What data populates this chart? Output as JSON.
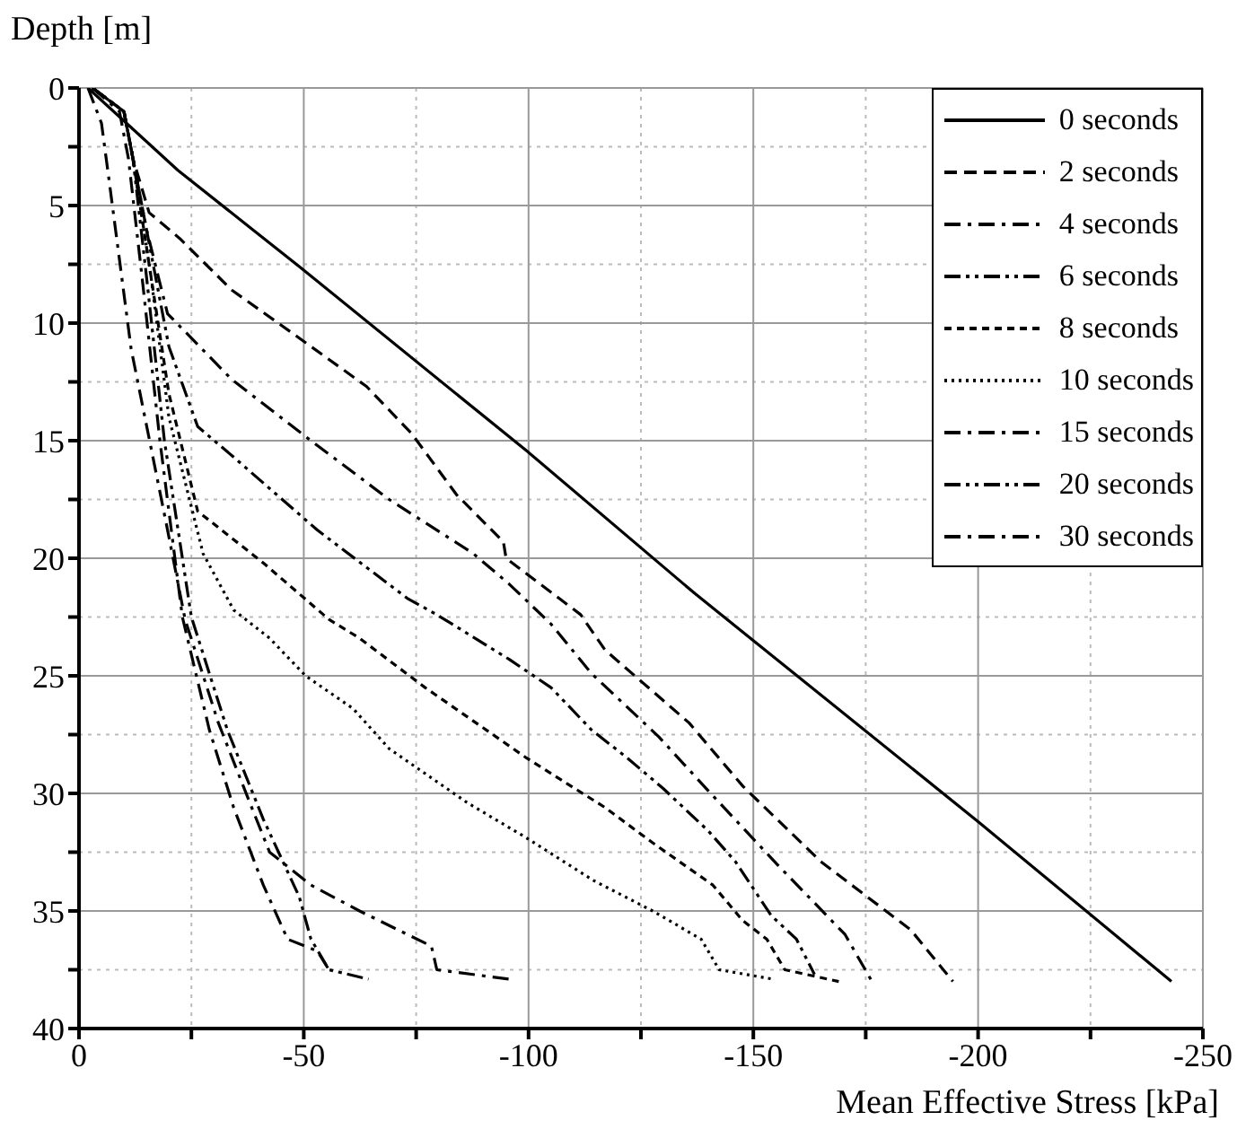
{
  "chart_data": {
    "type": "line",
    "xlabel": "Mean Effective Stress [kPa]",
    "ylabel": "Depth [m]",
    "xlim": [
      0,
      -250
    ],
    "ylim": [
      40,
      0
    ],
    "xticks": [
      0,
      {
        "value": -25,
        "label": null
      },
      -50,
      {
        "value": -75,
        "label": null
      },
      -100,
      {
        "value": -125,
        "label": null
      },
      -150,
      {
        "value": -175,
        "label": null
      },
      -200,
      {
        "value": -225,
        "label": null
      },
      -250
    ],
    "yticks": [
      0,
      {
        "value": 2.5,
        "label": null
      },
      5,
      {
        "value": 7.5,
        "label": null
      },
      10,
      {
        "value": 12.5,
        "label": null
      },
      15,
      {
        "value": 17.5,
        "label": null
      },
      20,
      {
        "value": 22.5,
        "label": null
      },
      25,
      {
        "value": 27.5,
        "label": null
      },
      30,
      {
        "value": 32.5,
        "label": null
      },
      35,
      {
        "value": 37.5,
        "label": null
      },
      40
    ],
    "grid": true,
    "legend": "top right",
    "marker": "none",
    "series": [
      {
        "name": "0 seconds",
        "color": "#000000",
        "line_style": "solid",
        "x": [
          -2,
          -22,
          -49,
          -100,
          -137,
          -150,
          -200,
          -243
        ],
        "values": [
          0,
          3.5,
          7.6,
          15.5,
          21.5,
          23.5,
          31.2,
          38
        ]
      },
      {
        "name": "2 seconds",
        "color": "#000000",
        "line_style": "dashed",
        "x": [
          -3,
          -10,
          -12,
          -15.6,
          -22.4,
          -34,
          -48,
          -64,
          -74,
          -84,
          -94.4,
          -95,
          -111.6,
          -117,
          -135.7,
          -147.7,
          -165,
          -185,
          -194.4
        ],
        "values": [
          0,
          1,
          3,
          5.3,
          6.4,
          8.6,
          10.5,
          12.7,
          14.7,
          17.3,
          19.3,
          20,
          22.4,
          23.9,
          27,
          29.7,
          32.9,
          35.8,
          38
        ]
      },
      {
        "name": "4 seconds",
        "color": "#000000",
        "line_style": "dashdot",
        "x": [
          -3,
          -10,
          -12,
          -15,
          -19.7,
          -34,
          -51.6,
          -69,
          -87.7,
          -95.7,
          -105,
          -114,
          -129,
          -141,
          -155.7,
          -170.4,
          -176.4
        ],
        "values": [
          0,
          1,
          3,
          6,
          9.6,
          12.4,
          15,
          17.5,
          19.8,
          21.1,
          22.8,
          24.9,
          27.6,
          30.1,
          33.1,
          36,
          38
        ]
      },
      {
        "name": "6 seconds",
        "color": "#000000",
        "line_style": "dashdotdot",
        "x": [
          -3,
          -10,
          -12,
          -16,
          -20,
          -26.4,
          -34.4,
          -53,
          -73,
          -79.6,
          -95.7,
          -105,
          -114,
          -122,
          -130,
          -140,
          -146,
          -154,
          -159.6,
          -163.6
        ],
        "values": [
          0,
          1,
          3,
          7,
          11,
          14.4,
          15.7,
          18.8,
          21.7,
          22.4,
          24.3,
          25.5,
          27.3,
          28.5,
          29.8,
          31.6,
          32.9,
          35.2,
          36.2,
          37.7
        ]
      },
      {
        "name": "8 seconds",
        "color": "#000000",
        "line_style": "shortdash",
        "x": [
          -3,
          -10,
          -12,
          -16,
          -20,
          -26.4,
          -41,
          -55.6,
          -62.4,
          -77,
          -99.6,
          -117,
          -127.6,
          -141,
          -147.6,
          -153,
          -157,
          -169
        ],
        "values": [
          0,
          1,
          3,
          8,
          13,
          18,
          20.2,
          22.6,
          23.4,
          25.5,
          28.5,
          30.6,
          32.1,
          33.9,
          35.4,
          36.2,
          37.5,
          38
        ]
      },
      {
        "name": "10 seconds",
        "color": "#000000",
        "line_style": "dotted",
        "x": [
          -3,
          -10,
          -12,
          -16,
          -20,
          -27.6,
          -34.4,
          -42.4,
          -50.4,
          -61,
          -69,
          -86.4,
          -99.6,
          -114.4,
          -127.6,
          -138.4,
          -142.4,
          -154.4
        ],
        "values": [
          0,
          1,
          3,
          8,
          14,
          19.8,
          22.2,
          23.4,
          25,
          26.4,
          28.1,
          30.4,
          31.9,
          33.7,
          35,
          36.2,
          37.5,
          37.9
        ]
      },
      {
        "name": "15 seconds",
        "color": "#000000",
        "line_style": "dashdot",
        "x": [
          -2,
          -5,
          -6.4,
          -11.6,
          -19.7,
          -23.6,
          -31,
          -38,
          -42.4,
          -51.6,
          -62.4,
          -78.4,
          -79.6,
          -95.7
        ],
        "values": [
          0,
          1.5,
          3.5,
          11.1,
          18.8,
          22.6,
          27,
          30.4,
          32.5,
          33.9,
          35,
          36.5,
          37.5,
          37.9
        ]
      },
      {
        "name": "20 seconds",
        "color": "#000000",
        "line_style": "dashdotdot",
        "x": [
          -3,
          -10,
          -12,
          -15,
          -19,
          -25,
          -33,
          -41,
          -49,
          -51.6,
          -55.6,
          -64.4
        ],
        "values": [
          0,
          1,
          3,
          8,
          15,
          22.5,
          27.3,
          31.1,
          34.4,
          36.2,
          37.5,
          37.9
        ]
      },
      {
        "name": "30 seconds",
        "color": "#000000",
        "line_style": "dashdot",
        "x": [
          -3,
          -9,
          -11,
          -14,
          -18,
          -23,
          -29,
          -34.4,
          -41,
          -46.4,
          -53,
          -55.6
        ],
        "values": [
          0,
          1,
          3,
          8,
          15,
          22.5,
          27.3,
          30.6,
          33.9,
          36.2,
          36.7,
          37.5
        ]
      }
    ]
  }
}
